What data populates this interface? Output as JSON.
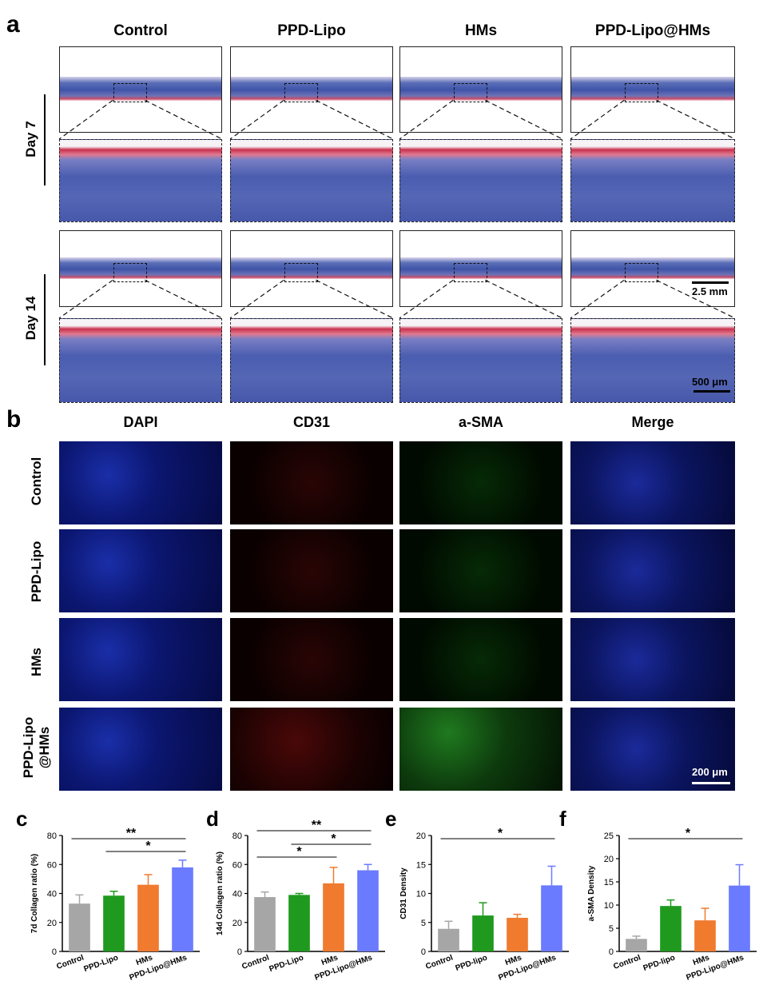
{
  "panel_a": {
    "letter": "a",
    "columns": [
      "Control",
      "PPD-Lipo",
      "HMs",
      "PPD-Lipo@HMs"
    ],
    "rows": [
      "Day 7",
      "Day 14"
    ],
    "scale_overview": "2.5 mm",
    "scale_zoom": "500 μm"
  },
  "panel_b": {
    "letter": "b",
    "columns": [
      "DAPI",
      "CD31",
      "a-SMA",
      "Merge"
    ],
    "rows": [
      "Control",
      "PPD-Lipo",
      "HMs",
      "PPD-Lipo\n@HMs"
    ],
    "row_line1": [
      "Control",
      "PPD-Lipo",
      "HMs",
      "PPD-Lipo"
    ],
    "row_line2": [
      "",
      "",
      "",
      "@HMs"
    ],
    "scale": "200 μm"
  },
  "colors": {
    "control": "#a6a6a6",
    "ppd_lipo": "#1f9a1f",
    "hms": "#f07a2e",
    "ppd_lipo_hms": "#6b7bff"
  },
  "chart_data": [
    {
      "panel": "c",
      "type": "bar",
      "categories": [
        "Control",
        "PPD-Lipo",
        "HMs",
        "PPD-Lipo@HMs"
      ],
      "values": [
        33,
        38.5,
        46,
        58
      ],
      "errors": [
        6,
        3,
        7,
        5
      ],
      "ylabel": "7d Collagen ratio (%)",
      "ylim": [
        0,
        80
      ],
      "yticks": [
        0,
        20,
        40,
        60,
        80
      ],
      "significance": [
        {
          "from": 0,
          "to": 3,
          "label": "**"
        },
        {
          "from": 1,
          "to": 3,
          "label": "*"
        }
      ]
    },
    {
      "panel": "d",
      "type": "bar",
      "categories": [
        "Control",
        "PPD-Lipo",
        "HMs",
        "PPD-Lipo@HMs"
      ],
      "values": [
        37.5,
        39,
        47,
        56
      ],
      "errors": [
        3.5,
        1,
        11,
        4
      ],
      "ylabel": "14d Collagen ratio (%)",
      "ylim": [
        0,
        80
      ],
      "yticks": [
        0,
        20,
        40,
        60,
        80
      ],
      "significance": [
        {
          "from": 0,
          "to": 3,
          "label": "**"
        },
        {
          "from": 1,
          "to": 3,
          "label": "*"
        },
        {
          "from": 0,
          "to": 2,
          "label": "*"
        }
      ]
    },
    {
      "panel": "e",
      "type": "bar",
      "categories": [
        "Control",
        "PPD-lipo",
        "HMs",
        "PPD-Lipo@HMs"
      ],
      "values": [
        3.9,
        6.2,
        5.8,
        11.4
      ],
      "errors": [
        1.3,
        2.2,
        0.6,
        3.3
      ],
      "ylabel": "CD31 Density",
      "ylim": [
        0,
        20
      ],
      "yticks": [
        0,
        5,
        10,
        15,
        20
      ],
      "significance": [
        {
          "from": 0,
          "to": 3,
          "label": "*"
        }
      ]
    },
    {
      "panel": "f",
      "type": "bar",
      "categories": [
        "Control",
        "PPD-lipo",
        "HMs",
        "PPD-Lipo@HMs"
      ],
      "values": [
        2.7,
        9.8,
        6.7,
        14.2
      ],
      "errors": [
        0.6,
        1.3,
        2.6,
        4.5
      ],
      "ylabel": "a-SMA Density",
      "ylim": [
        0,
        25
      ],
      "yticks": [
        0,
        5,
        10,
        15,
        20,
        25
      ],
      "significance": [
        {
          "from": 0,
          "to": 3,
          "label": "*"
        }
      ]
    }
  ]
}
